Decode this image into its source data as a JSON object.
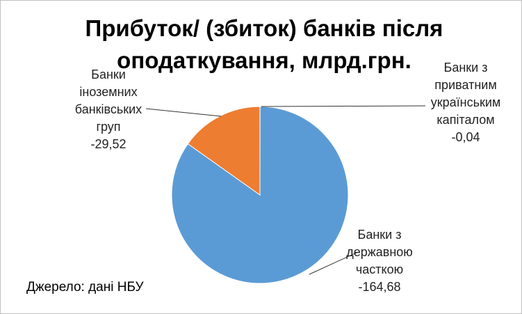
{
  "chart_data": {
    "type": "pie",
    "title": "Прибуток/ (збиток) банків після оподаткування, млрд.грн.",
    "categories": [
      "Банки з приватним українським капіталом",
      "Банки з державною часткою",
      "Банки іноземних банківських груп"
    ],
    "values": [
      -0.04,
      -164.68,
      -29.52
    ],
    "value_labels": [
      "-0,04",
      "-164,68",
      "-29,52"
    ],
    "colors": [
      "#a5a5a5",
      "#5b9bd5",
      "#ed7d31"
    ],
    "source": "Джерело: дані НБУ"
  }
}
